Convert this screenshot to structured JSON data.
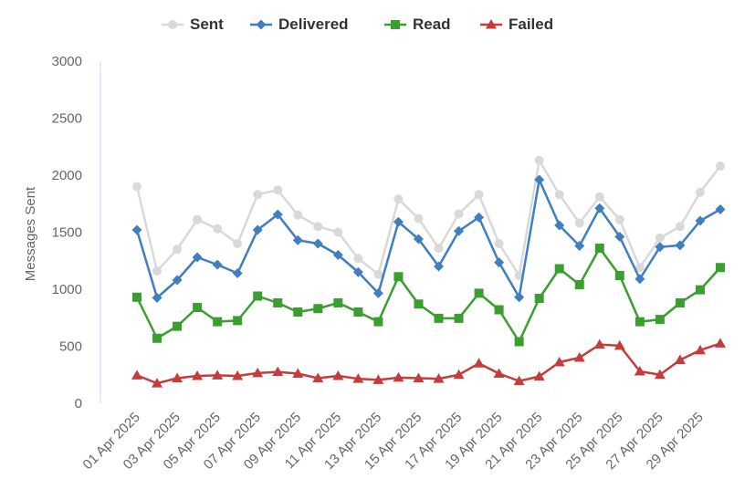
{
  "chart_data": {
    "type": "line",
    "title": "",
    "xlabel": "",
    "ylabel": "Messages Sent",
    "ylim": [
      0,
      3000
    ],
    "yticks": [
      0,
      500,
      1000,
      1500,
      2000,
      2500,
      3000
    ],
    "grid": false,
    "legend_position": "top",
    "x": [
      "01 Apr 2025",
      "02 Apr 2025",
      "03 Apr 2025",
      "04 Apr 2025",
      "05 Apr 2025",
      "06 Apr 2025",
      "07 Apr 2025",
      "08 Apr 2025",
      "09 Apr 2025",
      "10 Apr 2025",
      "11 Apr 2025",
      "12 Apr 2025",
      "13 Apr 2025",
      "14 Apr 2025",
      "15 Apr 2025",
      "16 Apr 2025",
      "17 Apr 2025",
      "18 Apr 2025",
      "19 Apr 2025",
      "20 Apr 2025",
      "21 Apr 2025",
      "22 Apr 2025",
      "23 Apr 2025",
      "24 Apr 2025",
      "25 Apr 2025",
      "26 Apr 2025",
      "27 Apr 2025",
      "28 Apr 2025",
      "29 Apr 2025",
      "30 Apr 2025"
    ],
    "x_tick_labels": [
      "01 Apr 2025",
      "03 Apr 2025",
      "05 Apr 2025",
      "07 Apr 2025",
      "09 Apr 2025",
      "11 Apr 2025",
      "13 Apr 2025",
      "15 Apr 2025",
      "17 Apr 2025",
      "19 Apr 2025",
      "21 Apr 2025",
      "23 Apr 2025",
      "25 Apr 2025",
      "27 Apr 2025",
      "29 Apr 2025"
    ],
    "series": [
      {
        "name": "Sent",
        "color": "#d9d9d9",
        "marker": "circle",
        "values": [
          1900,
          1160,
          1350,
          1610,
          1530,
          1400,
          1830,
          1870,
          1650,
          1550,
          1500,
          1270,
          1130,
          1790,
          1620,
          1360,
          1660,
          1830,
          1400,
          1120,
          2130,
          1830,
          1580,
          1810,
          1610,
          1190,
          1450,
          1550,
          1850,
          2080
        ]
      },
      {
        "name": "Delivered",
        "color": "#3f7fbf",
        "marker": "diamond",
        "values": [
          1520,
          925,
          1080,
          1280,
          1215,
          1140,
          1520,
          1655,
          1430,
          1400,
          1300,
          1150,
          965,
          1590,
          1440,
          1200,
          1510,
          1630,
          1235,
          930,
          1960,
          1560,
          1380,
          1710,
          1460,
          1090,
          1370,
          1385,
          1600,
          1700
        ]
      },
      {
        "name": "Read",
        "color": "#3a9f2f",
        "marker": "square",
        "values": [
          930,
          570,
          675,
          840,
          715,
          725,
          940,
          880,
          800,
          830,
          880,
          800,
          715,
          1110,
          870,
          745,
          745,
          965,
          820,
          540,
          920,
          1180,
          1040,
          1360,
          1120,
          715,
          735,
          880,
          995,
          1190
        ]
      },
      {
        "name": "Failed",
        "color": "#c43c3c",
        "marker": "triangle",
        "values": [
          245,
          175,
          220,
          240,
          245,
          240,
          265,
          275,
          260,
          220,
          240,
          215,
          205,
          225,
          220,
          215,
          250,
          350,
          260,
          195,
          235,
          360,
          400,
          515,
          505,
          280,
          250,
          380,
          465,
          525
        ]
      }
    ]
  }
}
